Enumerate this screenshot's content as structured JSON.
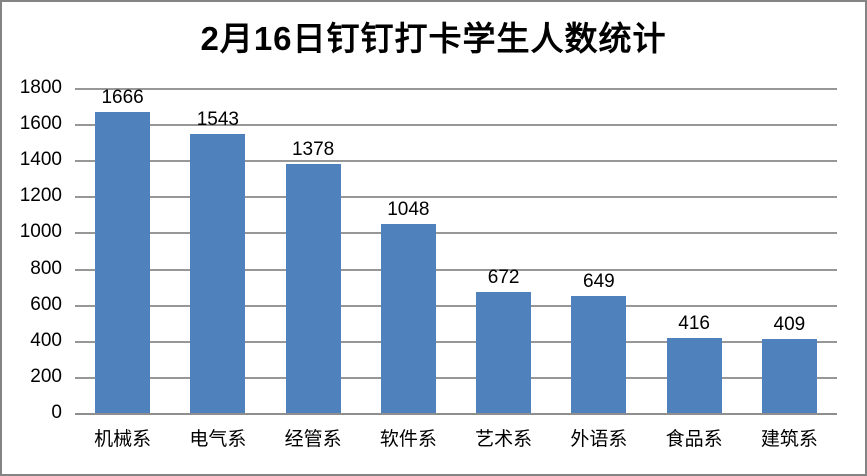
{
  "chart_data": {
    "type": "bar",
    "title": "2月16日钉钉打卡学生人数统计",
    "categories": [
      "机械系",
      "电气系",
      "经管系",
      "软件系",
      "艺术系",
      "外语系",
      "食品系",
      "建筑系"
    ],
    "values": [
      1666,
      1543,
      1378,
      1048,
      672,
      649,
      416,
      409
    ],
    "xlabel": "",
    "ylabel": "",
    "ylim": [
      0,
      1800
    ],
    "ytick_step": 200,
    "ytick_labels": [
      "0",
      "200",
      "400",
      "600",
      "800",
      "1000",
      "1200",
      "1400",
      "1600",
      "1800"
    ],
    "grid": true,
    "legend_position": "none",
    "data_labels": true,
    "colors": {
      "bar": "#4F81BD",
      "gridline": "#979797",
      "axis_line": "#8e8e8e",
      "text": "#000000",
      "frame_border": "#848484",
      "background": "#ffffff"
    }
  }
}
